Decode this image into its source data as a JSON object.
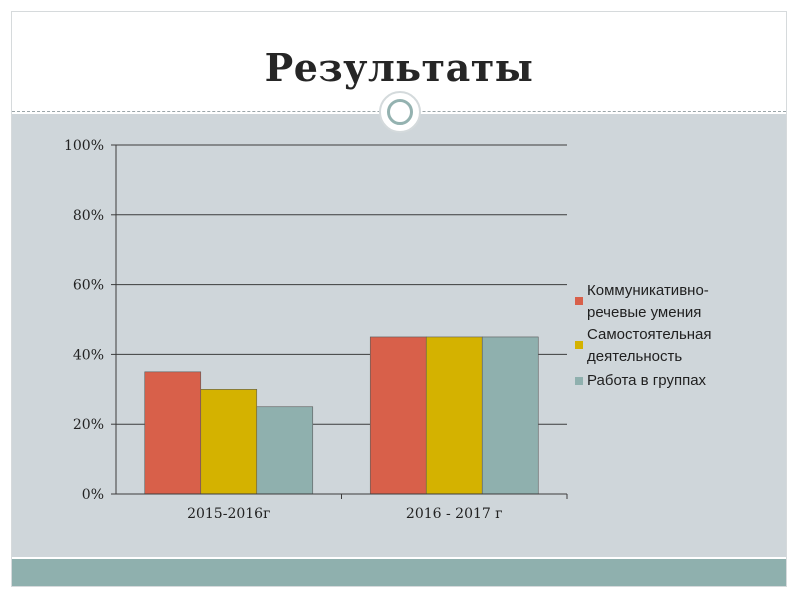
{
  "slide": {
    "title": "Результаты"
  },
  "colors": {
    "title_bg": "#ffffff",
    "content_bg": "#cfd6da",
    "footer_band": "#8fb0ae"
  },
  "chart_data": {
    "type": "bar",
    "categories": [
      "2015-2016г",
      "2016 - 2017 г"
    ],
    "series": [
      {
        "name": "Коммуникативно-речевые умения",
        "legend_lines": [
          "Коммуникативно-",
          "речевые умения"
        ],
        "color": "#d8604a",
        "values": [
          35,
          45
        ]
      },
      {
        "name": "Самостоятельная деятельность",
        "legend_lines": [
          "Самостоятельная",
          "деятельность"
        ],
        "color": "#d4b200",
        "values": [
          30,
          45
        ]
      },
      {
        "name": "Работа в группах",
        "legend_lines": [
          "Работа в группах"
        ],
        "color": "#8fb0ae",
        "values": [
          25,
          45
        ]
      }
    ],
    "ylim": [
      0,
      100
    ],
    "y_ticks": [
      0,
      20,
      40,
      60,
      80,
      100
    ],
    "y_tick_labels": [
      "0%",
      "20%",
      "40%",
      "60%",
      "80%",
      "100%"
    ],
    "grid": true,
    "legend_position": "right",
    "xlabel": "",
    "ylabel": ""
  }
}
